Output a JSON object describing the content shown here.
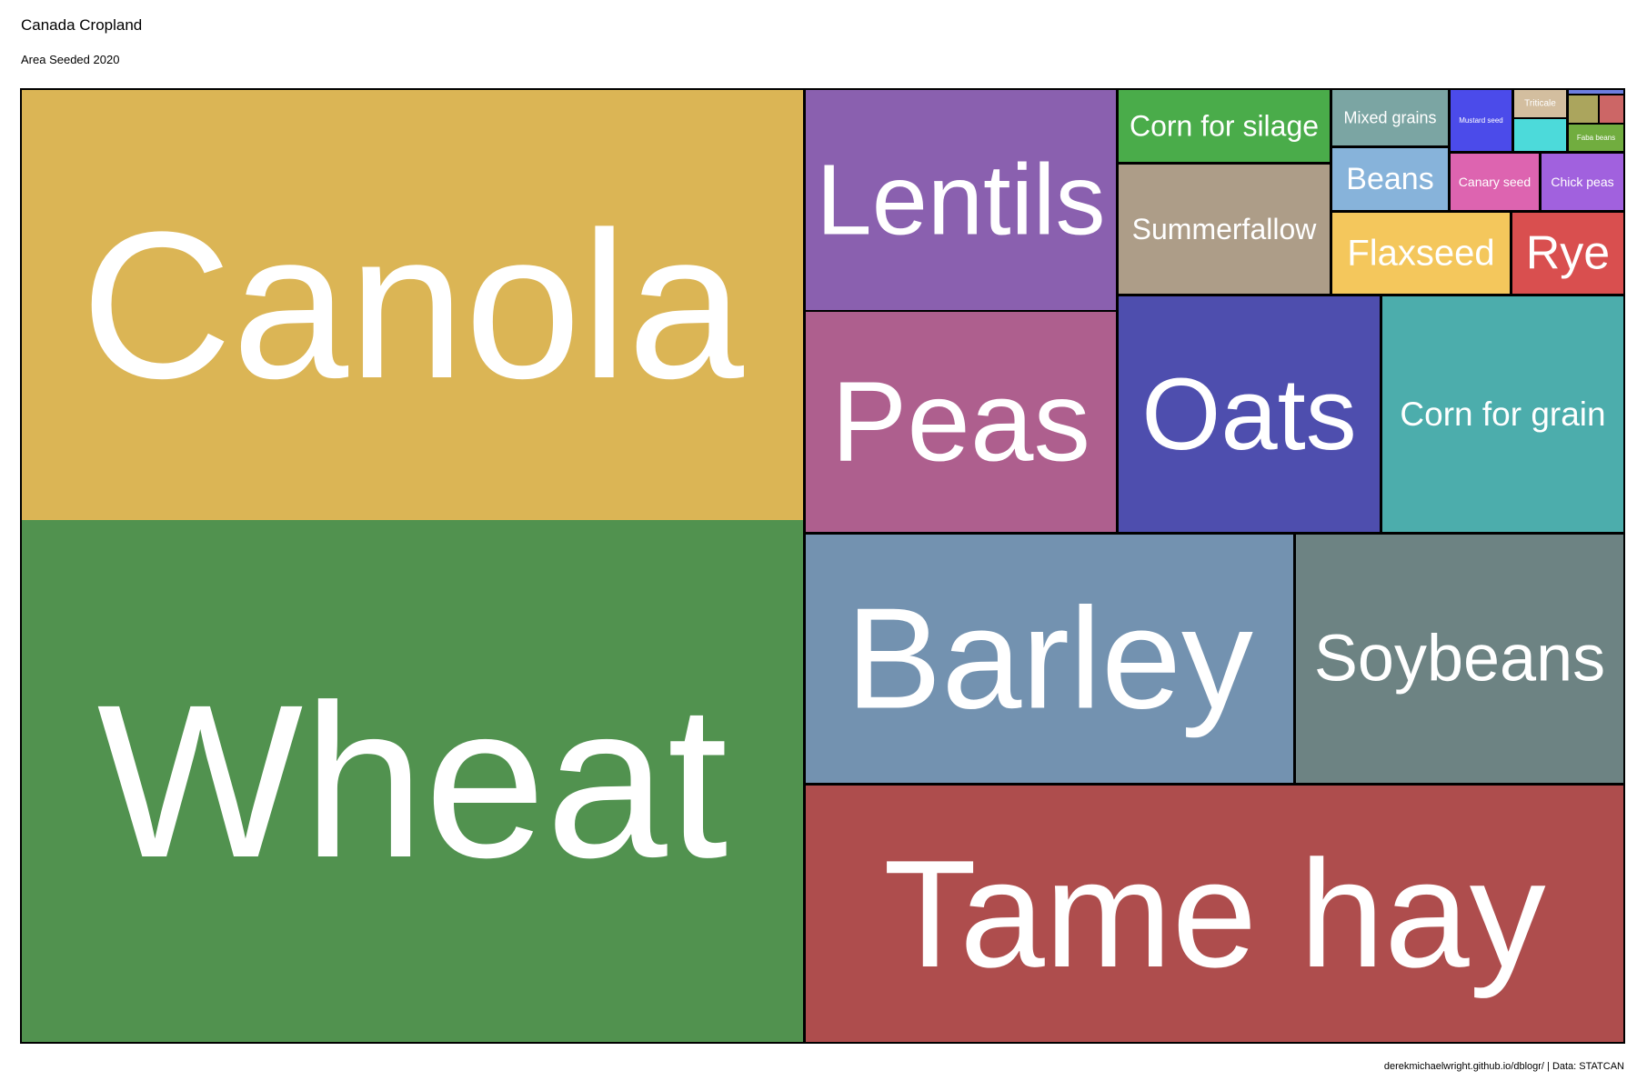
{
  "title": "Canada Cropland",
  "subtitle": "Area Seeded 2020",
  "caption": "derekmichaelwright.github.io/dblogr/ | Data: STATCAN",
  "chart_data": {
    "type": "treemap",
    "title": "Canada Cropland",
    "subtitle": "Area Seeded 2020",
    "tiles": [
      {
        "label": "Canola",
        "value": 21.0,
        "color": "#DBB555"
      },
      {
        "label": "Wheat",
        "value": 25.5,
        "color": "#51924F"
      },
      {
        "label": "Lentils",
        "value": 4.4,
        "color": "#8A60AF"
      },
      {
        "label": "Peas",
        "value": 4.4,
        "color": "#AE5F8E"
      },
      {
        "label": "Corn for silage",
        "value": 1.1,
        "color": "#4AAC4A"
      },
      {
        "label": "Summerfallow",
        "value": 2.0,
        "color": "#AD9D88"
      },
      {
        "label": "Mixed grains",
        "value": 0.5,
        "color": "#7BA5A3"
      },
      {
        "label": "Beans",
        "value": 0.4,
        "color": "#87B3DA"
      },
      {
        "label": "Mustard seed",
        "value": 0.3,
        "color": "#4B4BEA"
      },
      {
        "label": "Triticale",
        "value": 0.1,
        "color": "#D3BE9F"
      },
      {
        "label": "",
        "value": 0.05,
        "color": "#ABA55D"
      },
      {
        "label": "",
        "value": 0.05,
        "color": "#CC6666"
      },
      {
        "label": "",
        "value": 0.15,
        "color": "#4CDADA"
      },
      {
        "label": "Faba beans",
        "value": 0.1,
        "color": "#71AD3F"
      },
      {
        "label": "Canary seed",
        "value": 0.35,
        "color": "#DD64B0"
      },
      {
        "label": "Chick peas",
        "value": 0.3,
        "color": "#A161DE"
      },
      {
        "label": "Flaxseed",
        "value": 1.1,
        "color": "#F4C75C"
      },
      {
        "label": "Rye",
        "value": 0.5,
        "color": "#D94F4F"
      },
      {
        "label": "Oats",
        "value": 3.4,
        "color": "#4E4EAE"
      },
      {
        "label": "Corn for grain",
        "value": 3.0,
        "color": "#4CADAC"
      },
      {
        "label": "Barley",
        "value": 7.5,
        "color": "#7392B0"
      },
      {
        "label": "Soybeans",
        "value": 4.8,
        "color": "#6D8383"
      },
      {
        "label": "Tame hay",
        "value": 11.9,
        "color": "#AE4D4D"
      },
      {
        "label": "",
        "value": 0.02,
        "color": "#6D7EE0"
      }
    ]
  }
}
